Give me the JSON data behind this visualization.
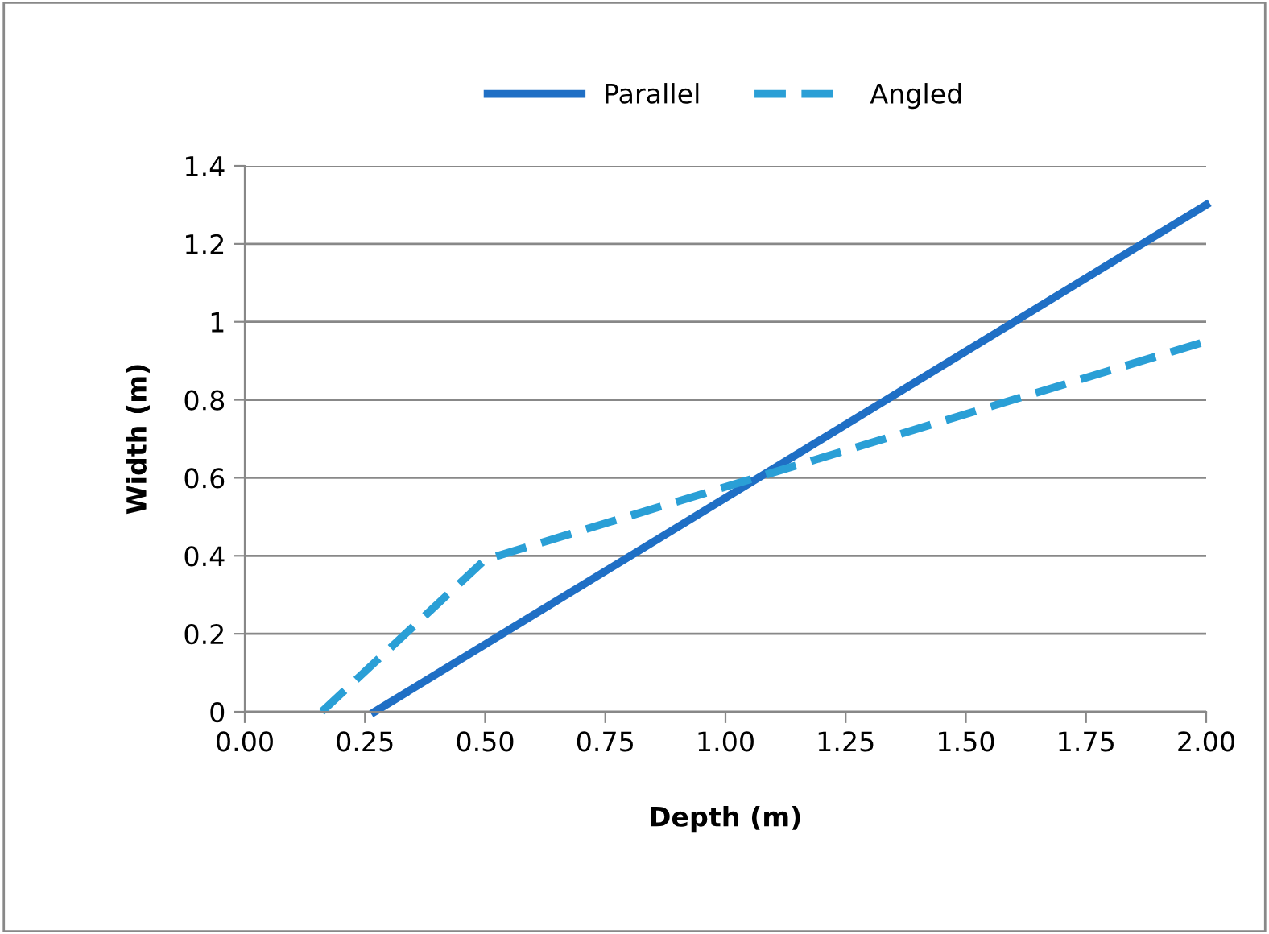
{
  "chart_data": {
    "type": "line",
    "xlabel": "Depth (m)",
    "ylabel": "Width (m)",
    "series": [
      {
        "name": "Parallel",
        "color": "#1f6fc5",
        "line_style": "solid",
        "x": [
          0.27,
          2.0
        ],
        "values": [
          0,
          1.3
        ]
      },
      {
        "name": "Angled",
        "color": "#2a9fd6",
        "line_style": "dashed",
        "x": [
          0.16,
          0.5,
          2.0
        ],
        "values": [
          0,
          0.39,
          0.95
        ]
      }
    ],
    "xlim": [
      0,
      2
    ],
    "xticks": [
      {
        "value": 0,
        "label": "0.00"
      },
      {
        "value": 0.25,
        "label": "0.25"
      },
      {
        "value": 0.5,
        "label": "0.50"
      },
      {
        "value": 0.75,
        "label": "0.75"
      },
      {
        "value": 1,
        "label": "1.00"
      },
      {
        "value": 1.25,
        "label": "1.25"
      },
      {
        "value": 1.5,
        "label": "1.50"
      },
      {
        "value": 1.75,
        "label": "1.75"
      },
      {
        "value": 2,
        "label": "2.00"
      }
    ],
    "ylim": [
      0,
      1.4
    ],
    "yticks": [
      0,
      0.2,
      0.4,
      0.6,
      0.8,
      1,
      1.2,
      1.4
    ],
    "grid": "y",
    "legend": "top",
    "marker": "none"
  }
}
